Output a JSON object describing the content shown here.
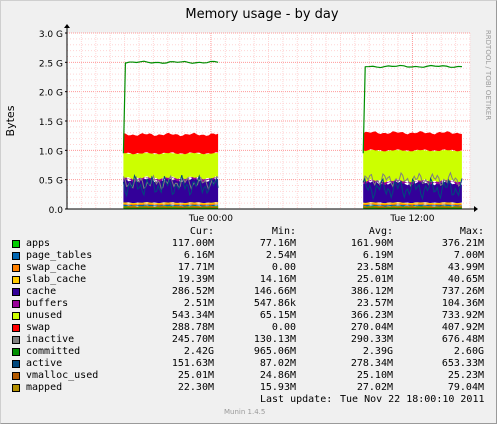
{
  "chart_data": {
    "type": "area",
    "title": "Memory usage - by day",
    "ylabel": "Bytes",
    "watermark": "RRDTOOL / TOBI OETIKER",
    "ylim": [
      0,
      3.0
    ],
    "y_unit": "G",
    "y_ticks": [
      "0.0",
      "0.5 G",
      "1.0 G",
      "1.5 G",
      "2.0 G",
      "2.5 G",
      "3.0 G"
    ],
    "x_ticks": [
      "Tue 00:00",
      "Tue 12:00"
    ],
    "grid": true,
    "series_order": [
      "apps",
      "page_tables",
      "swap_cache",
      "slab_cache",
      "cache",
      "buffers",
      "unused",
      "swap",
      "inactive",
      "committed",
      "active",
      "vmalloc_used",
      "mapped"
    ],
    "series": [
      {
        "name": "apps",
        "color": "#00cc00"
      },
      {
        "name": "page_tables",
        "color": "#0066b3"
      },
      {
        "name": "swap_cache",
        "color": "#ff8000"
      },
      {
        "name": "slab_cache",
        "color": "#ffcc00"
      },
      {
        "name": "cache",
        "color": "#330099"
      },
      {
        "name": "buffers",
        "color": "#990099"
      },
      {
        "name": "unused",
        "color": "#ccff00"
      },
      {
        "name": "swap",
        "color": "#ff0000"
      },
      {
        "name": "inactive",
        "color": "#808080"
      },
      {
        "name": "committed",
        "color": "#008f00"
      },
      {
        "name": "active",
        "color": "#00487d"
      },
      {
        "name": "vmalloc_used",
        "color": "#b35a00"
      },
      {
        "name": "mapped",
        "color": "#b38f00"
      }
    ],
    "approx_segments": [
      {
        "start": 0.14,
        "end": 0.375,
        "stack_G": {
          "apps": 0.05,
          "buffers_cache": 0.45,
          "unused": 0.45,
          "swap": 0.32
        },
        "committed_G": 2.5,
        "active_G": 0.4,
        "inactive_G": 0.45
      },
      {
        "start": 0.735,
        "end": 0.98,
        "stack_G": {
          "apps": 0.05,
          "buffers_cache": 0.4,
          "unused": 0.55,
          "swap": 0.3
        },
        "committed_G": 2.43,
        "active_G": 0.35,
        "inactive_G": 0.5
      }
    ]
  },
  "legend": {
    "headers": {
      "cur": "Cur:",
      "min": "Min:",
      "avg": "Avg:",
      "max": "Max:"
    },
    "rows": [
      {
        "name": "apps",
        "cur": "117.00M",
        "min": "77.16M",
        "avg": "161.90M",
        "max": "376.21M"
      },
      {
        "name": "page_tables",
        "cur": "6.16M",
        "min": "2.54M",
        "avg": "6.19M",
        "max": "7.00M"
      },
      {
        "name": "swap_cache",
        "cur": "17.71M",
        "min": "0.00",
        "avg": "23.58M",
        "max": "43.99M"
      },
      {
        "name": "slab_cache",
        "cur": "19.39M",
        "min": "14.16M",
        "avg": "25.01M",
        "max": "40.65M"
      },
      {
        "name": "cache",
        "cur": "286.52M",
        "min": "146.66M",
        "avg": "386.12M",
        "max": "737.26M"
      },
      {
        "name": "buffers",
        "cur": "2.51M",
        "min": "547.86k",
        "avg": "23.57M",
        "max": "104.36M"
      },
      {
        "name": "unused",
        "cur": "543.34M",
        "min": "65.15M",
        "avg": "366.23M",
        "max": "733.92M"
      },
      {
        "name": "swap",
        "cur": "288.78M",
        "min": "0.00",
        "avg": "270.04M",
        "max": "407.92M"
      },
      {
        "name": "inactive",
        "cur": "245.70M",
        "min": "130.13M",
        "avg": "290.33M",
        "max": "676.48M"
      },
      {
        "name": "committed",
        "cur": "2.42G",
        "min": "965.06M",
        "avg": "2.39G",
        "max": "2.60G"
      },
      {
        "name": "active",
        "cur": "151.63M",
        "min": "87.02M",
        "avg": "278.34M",
        "max": "653.33M"
      },
      {
        "name": "vmalloc_used",
        "cur": "25.01M",
        "min": "24.86M",
        "avg": "25.10M",
        "max": "25.23M"
      },
      {
        "name": "mapped",
        "cur": "22.30M",
        "min": "15.93M",
        "avg": "27.02M",
        "max": "79.04M"
      }
    ]
  },
  "footer": {
    "last_update_label": "Last update:",
    "last_update_value": "Tue Nov 22 18:00:10 2011",
    "munin_version": "Munin 1.4.5"
  }
}
